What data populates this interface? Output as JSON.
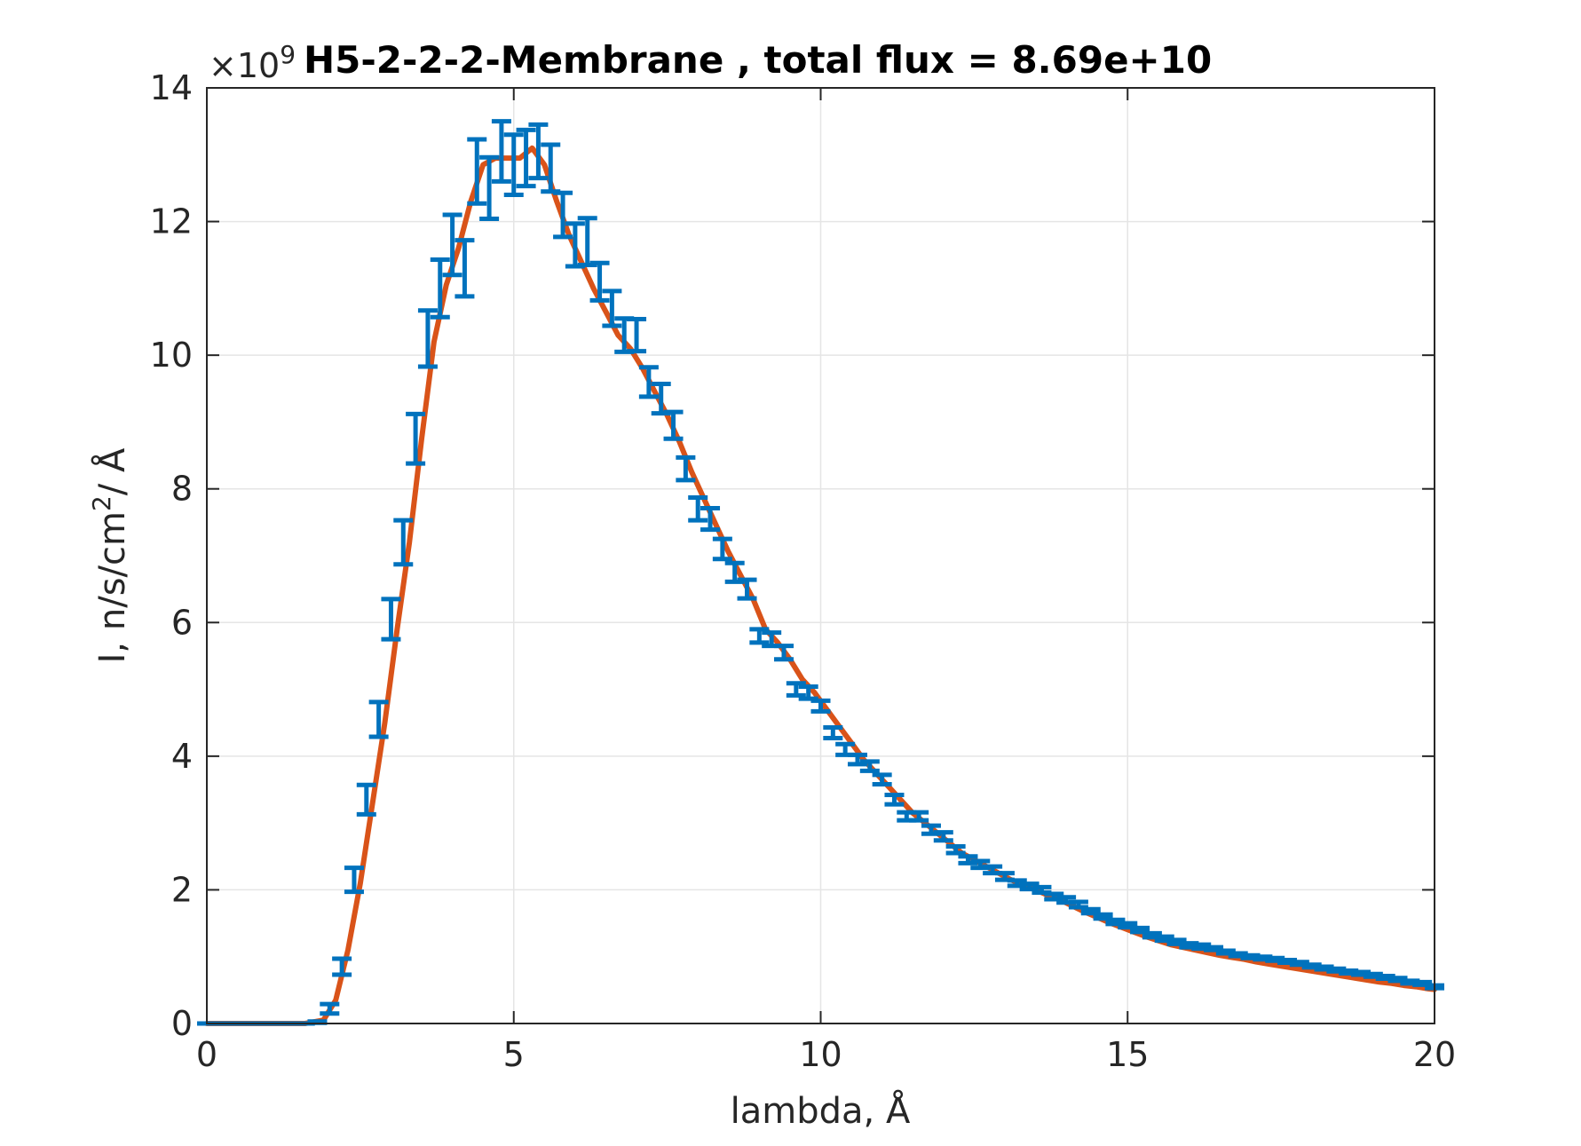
{
  "colors": {
    "fit_line": "#D95319",
    "errorbar": "#0072BD",
    "grid": "#e5e5e5",
    "axis": "#262626"
  },
  "chart_data": {
    "type": "line",
    "title": "H5-2-2-2-Membrane , total flux =  8.69e+10",
    "xlabel": "lambda,  Å",
    "ylabel": "I, n/s/cm²/ Å",
    "ylabel_parts": {
      "base": "I, n/s/cm",
      "sup": "2",
      "tail": "/ Å"
    },
    "y_exponent": {
      "prefix": "×10",
      "power": "9"
    },
    "xlim": [
      0,
      20
    ],
    "ylim": [
      0,
      14
    ],
    "x_ticks": [
      0,
      5,
      10,
      15,
      20
    ],
    "x_tick_labels": [
      "0",
      "5",
      "10",
      "15",
      "20"
    ],
    "y_ticks": [
      0,
      2,
      4,
      6,
      8,
      10,
      12,
      14
    ],
    "y_tick_labels": [
      "0",
      "2",
      "4",
      "6",
      "8",
      "10",
      "12",
      "14"
    ],
    "grid": true,
    "series": [
      {
        "kind": "line",
        "x": [
          0,
          1.6,
          1.9,
          2.1,
          2.3,
          2.5,
          2.7,
          2.9,
          3.1,
          3.3,
          3.5,
          3.7,
          3.9,
          4.1,
          4.3,
          4.5,
          4.7,
          4.9,
          5.1,
          5.3,
          5.5,
          5.7,
          5.9,
          6.1,
          6.3,
          6.5,
          6.7,
          6.9,
          7.1,
          7.3,
          7.5,
          7.7,
          7.9,
          8.1,
          8.3,
          8.5,
          8.7,
          8.9,
          9.1,
          9.3,
          9.5,
          9.7,
          9.9,
          10.1,
          10.3,
          10.5,
          10.7,
          10.9,
          11.1,
          11.3,
          11.5,
          11.7,
          11.9,
          12.1,
          12.3,
          12.5,
          12.7,
          12.9,
          13.1,
          13.3,
          13.5,
          13.7,
          13.9,
          14.1,
          14.3,
          14.5,
          14.7,
          14.9,
          15.1,
          15.3,
          15.5,
          15.7,
          15.9,
          16.1,
          16.3,
          16.5,
          16.7,
          16.9,
          17.1,
          17.3,
          17.5,
          17.7,
          17.9,
          18.1,
          18.3,
          18.5,
          18.7,
          18.9,
          19.1,
          19.3,
          19.5,
          19.7,
          19.9,
          20
        ],
        "y": [
          0,
          0,
          0.05,
          0.35,
          1.1,
          2.1,
          3.3,
          4.5,
          5.9,
          7.2,
          8.75,
          10.2,
          11.05,
          11.6,
          12.3,
          12.85,
          12.95,
          12.95,
          12.95,
          13.1,
          12.85,
          12.3,
          11.8,
          11.4,
          11.0,
          10.65,
          10.3,
          10.1,
          9.8,
          9.45,
          9.1,
          8.7,
          8.25,
          7.85,
          7.45,
          7.05,
          6.7,
          6.35,
          5.9,
          5.7,
          5.45,
          5.15,
          4.95,
          4.7,
          4.45,
          4.2,
          3.95,
          3.75,
          3.55,
          3.35,
          3.15,
          3.0,
          2.85,
          2.7,
          2.55,
          2.45,
          2.35,
          2.25,
          2.15,
          2.07,
          2.0,
          1.92,
          1.85,
          1.76,
          1.67,
          1.59,
          1.51,
          1.44,
          1.37,
          1.3,
          1.24,
          1.18,
          1.14,
          1.1,
          1.06,
          1.02,
          0.99,
          0.96,
          0.92,
          0.89,
          0.86,
          0.83,
          0.8,
          0.77,
          0.74,
          0.71,
          0.68,
          0.65,
          0.62,
          0.6,
          0.57,
          0.55,
          0.52,
          0.51
        ]
      },
      {
        "kind": "errorbar",
        "x": [
          0,
          0.2,
          0.4,
          0.6,
          0.8,
          1.0,
          1.2,
          1.4,
          1.6,
          1.8,
          2.0,
          2.2,
          2.4,
          2.6,
          2.8,
          3.0,
          3.2,
          3.4,
          3.6,
          3.8,
          4.0,
          4.2,
          4.4,
          4.6,
          4.8,
          5.0,
          5.2,
          5.4,
          5.6,
          5.8,
          6.0,
          6.2,
          6.4,
          6.6,
          6.8,
          7.0,
          7.2,
          7.4,
          7.6,
          7.8,
          8.0,
          8.2,
          8.4,
          8.6,
          8.8,
          9.0,
          9.2,
          9.4,
          9.6,
          9.8,
          10.0,
          10.2,
          10.4,
          10.6,
          10.8,
          11.0,
          11.2,
          11.4,
          11.6,
          11.8,
          12.0,
          12.2,
          12.4,
          12.6,
          12.8,
          13.0,
          13.2,
          13.4,
          13.6,
          13.8,
          14.0,
          14.2,
          14.4,
          14.6,
          14.8,
          15.0,
          15.2,
          15.4,
          15.6,
          15.8,
          16.0,
          16.2,
          16.4,
          16.6,
          16.8,
          17.0,
          17.2,
          17.4,
          17.6,
          17.8,
          18.0,
          18.2,
          18.4,
          18.6,
          18.8,
          19.0,
          19.2,
          19.4,
          19.6,
          19.8,
          20.0
        ],
        "y": [
          0,
          0,
          0,
          0,
          0,
          0,
          0,
          0,
          0,
          0.02,
          0.22,
          0.85,
          2.15,
          3.35,
          4.55,
          6.05,
          7.2,
          8.75,
          10.25,
          11.0,
          11.65,
          11.3,
          12.75,
          12.5,
          13.05,
          12.85,
          12.95,
          13.05,
          12.8,
          12.1,
          11.65,
          11.7,
          11.1,
          10.7,
          10.3,
          10.3,
          9.6,
          9.35,
          8.95,
          8.3,
          7.7,
          7.55,
          7.1,
          6.75,
          6.5,
          5.8,
          5.75,
          5.55,
          5.0,
          4.95,
          4.75,
          4.35,
          4.1,
          3.95,
          3.85,
          3.65,
          3.35,
          3.1,
          3.1,
          2.9,
          2.8,
          2.6,
          2.45,
          2.38,
          2.3,
          2.2,
          2.1,
          2.05,
          2.0,
          1.9,
          1.85,
          1.78,
          1.68,
          1.6,
          1.52,
          1.47,
          1.4,
          1.32,
          1.27,
          1.22,
          1.17,
          1.15,
          1.12,
          1.07,
          1.03,
          1.0,
          0.98,
          0.96,
          0.93,
          0.9,
          0.86,
          0.83,
          0.8,
          0.77,
          0.75,
          0.72,
          0.69,
          0.66,
          0.62,
          0.6,
          0.55
        ],
        "err": [
          0,
          0,
          0,
          0,
          0,
          0,
          0,
          0,
          0,
          0.01,
          0.07,
          0.12,
          0.18,
          0.22,
          0.26,
          0.3,
          0.33,
          0.37,
          0.42,
          0.43,
          0.45,
          0.42,
          0.48,
          0.46,
          0.45,
          0.45,
          0.42,
          0.4,
          0.35,
          0.33,
          0.32,
          0.35,
          0.28,
          0.26,
          0.25,
          0.24,
          0.22,
          0.22,
          0.2,
          0.17,
          0.17,
          0.16,
          0.15,
          0.14,
          0.14,
          0.1,
          0.1,
          0.1,
          0.09,
          0.09,
          0.08,
          0.08,
          0.08,
          0.07,
          0.07,
          0.07,
          0.07,
          0.06,
          0.06,
          0.06,
          0.06,
          0.05,
          0.05,
          0.05,
          0.05,
          0.05,
          0.04,
          0.04,
          0.04,
          0.04,
          0.04,
          0.04,
          0.03,
          0.03,
          0.03,
          0.03,
          0.03,
          0.03,
          0.03,
          0.03,
          0.03,
          0.03,
          0.02,
          0.02,
          0.02,
          0.02,
          0.02,
          0.02,
          0.02,
          0.02,
          0.02,
          0.02,
          0.02,
          0.02,
          0.02,
          0.02,
          0.02,
          0.02,
          0.02,
          0.02,
          0.02
        ]
      }
    ]
  }
}
